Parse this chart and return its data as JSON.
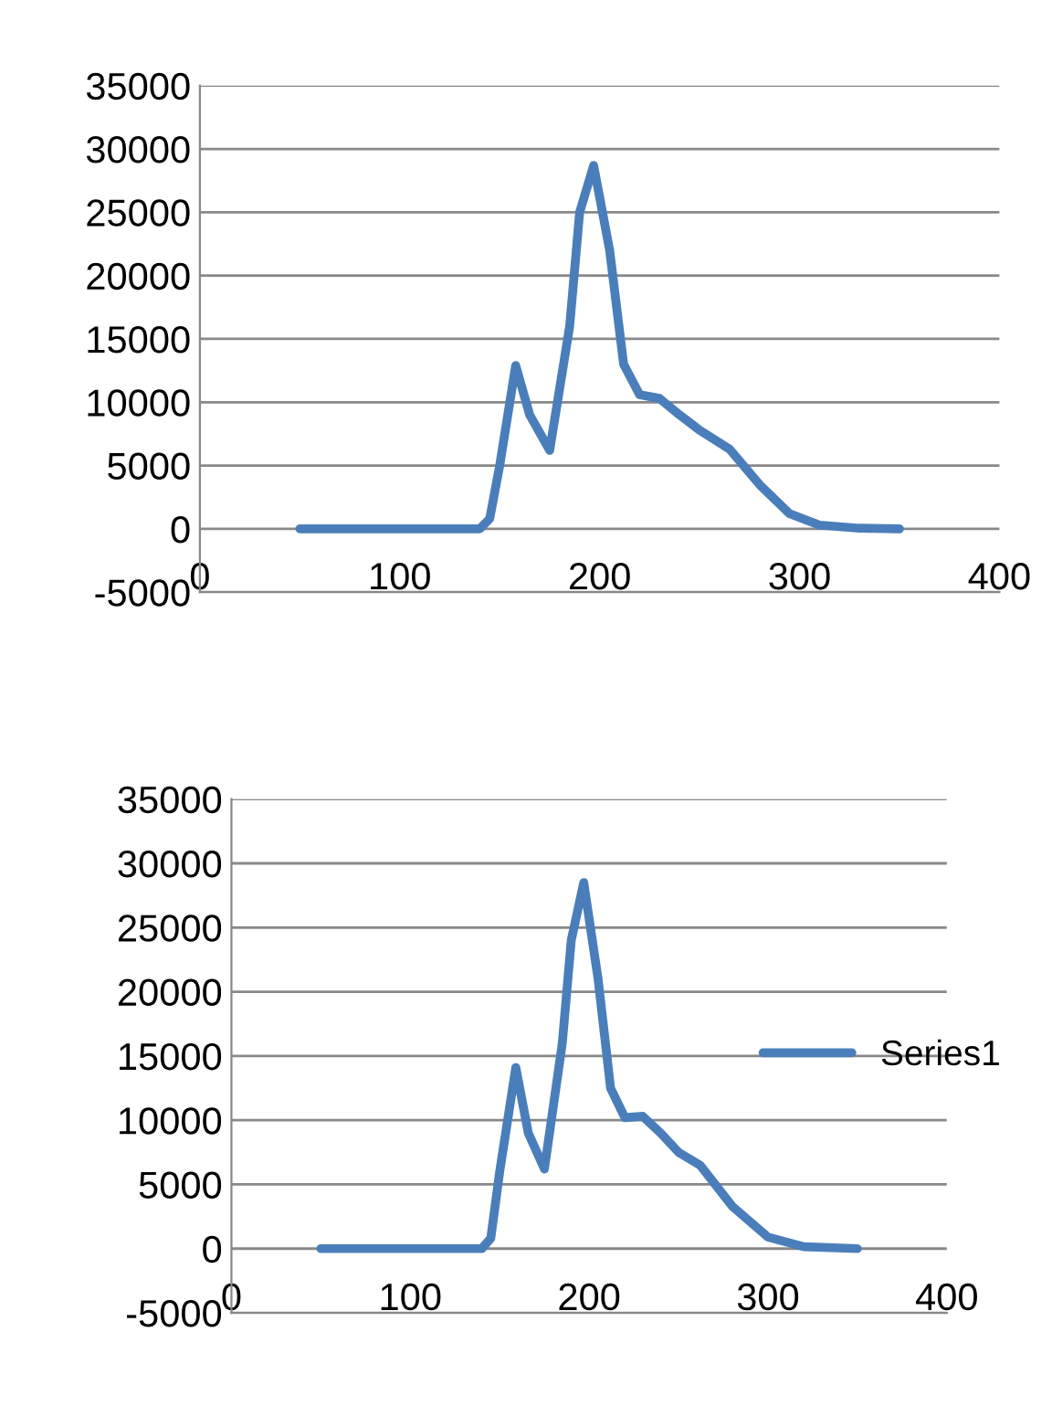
{
  "chart_data": [
    {
      "type": "line",
      "x": [
        50,
        140,
        145,
        150,
        158,
        165,
        175,
        185,
        190,
        197,
        205,
        212,
        220,
        230,
        240,
        250,
        265,
        280,
        295,
        310,
        330,
        350
      ],
      "series": [
        {
          "color": "#4a7ebb",
          "values": [
            0,
            0,
            800,
            5000,
            12900,
            9000,
            6200,
            16000,
            25000,
            28700,
            22000,
            13000,
            10600,
            10300,
            9000,
            7800,
            6300,
            3500,
            1200,
            300,
            50,
            0
          ]
        }
      ],
      "xlim": [
        0,
        400
      ],
      "xticks": [
        0,
        100,
        200,
        300,
        400
      ],
      "ylim": [
        -5000,
        35000
      ],
      "yticks": [
        -5000,
        0,
        5000,
        10000,
        15000,
        20000,
        25000,
        30000,
        35000
      ],
      "grid": "y",
      "legend": false
    },
    {
      "type": "line",
      "x": [
        50,
        140,
        145,
        150,
        159,
        166,
        175,
        185,
        190,
        197,
        205,
        212,
        220,
        230,
        240,
        250,
        262,
        280,
        300,
        320,
        350
      ],
      "series": [
        {
          "name": "Series1",
          "color": "#4a7ebb",
          "values": [
            0,
            0,
            800,
            6000,
            14100,
            9000,
            6200,
            16000,
            24000,
            28500,
            21000,
            12500,
            10200,
            10300,
            9000,
            7500,
            6500,
            3300,
            900,
            150,
            0
          ]
        }
      ],
      "xlim": [
        0,
        400
      ],
      "xticks": [
        0,
        100,
        200,
        300,
        400
      ],
      "ylim": [
        -5000,
        35000
      ],
      "yticks": [
        -5000,
        0,
        5000,
        10000,
        15000,
        20000,
        25000,
        30000,
        35000
      ],
      "grid": "y",
      "legend": "right"
    }
  ]
}
